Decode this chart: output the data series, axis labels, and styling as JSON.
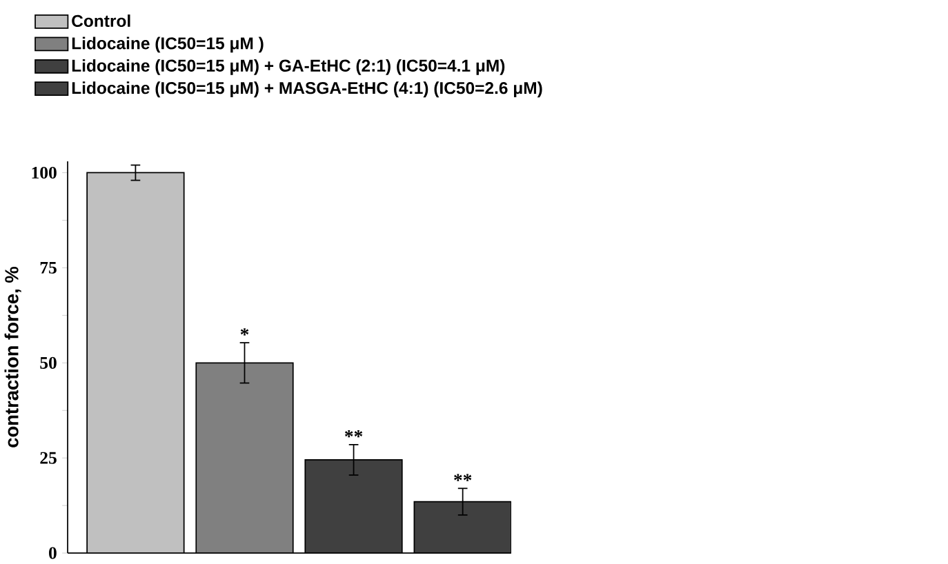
{
  "chart_data": {
    "type": "bar",
    "ylabel": "contraction force, %",
    "categories": [
      null
    ],
    "series": [
      {
        "name": "Control",
        "color": "#c0c0c0",
        "values": [
          100
        ],
        "errors": [
          2
        ]
      },
      {
        "name": "Lidocaine (IC50=15 μM )",
        "color": "#808080",
        "values": [
          50
        ],
        "errors": [
          5.3
        ]
      },
      {
        "name": "Lidocaine (IC50=15 μM) + GA-EtHC (2:1) (IC50=4.1 μM)",
        "color": "#404040",
        "values": [
          24.5
        ],
        "errors": [
          4
        ]
      },
      {
        "name": "Lidocaine (IC50=15 μM) + MASGA-EtHC (4:1) (IC50=2.6 μM)",
        "color": "#404040",
        "values": [
          13.5
        ],
        "errors": [
          3.5
        ]
      }
    ],
    "ylim": [
      0,
      103
    ],
    "yticks": [
      0,
      {
        "value": 12.5,
        "label": null
      },
      25,
      {
        "value": 37.5,
        "label": null
      },
      50,
      {
        "value": 62.5,
        "label": null
      },
      75,
      {
        "value": 87.5,
        "label": null
      },
      100
    ],
    "annotations": [
      "*",
      "**",
      "**"
    ],
    "legend": "top left"
  }
}
